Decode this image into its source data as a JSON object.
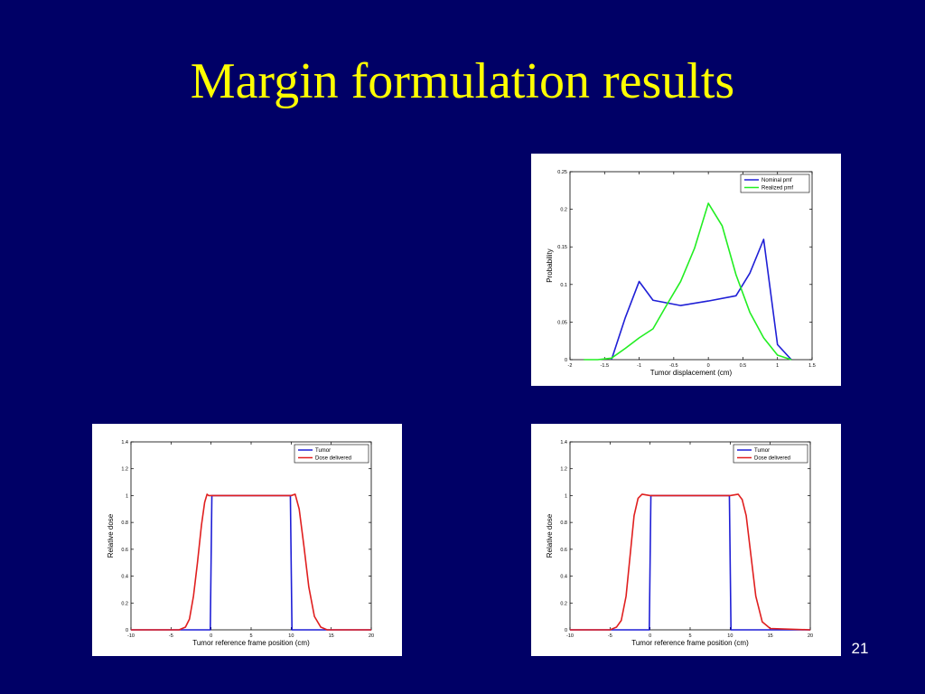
{
  "slide": {
    "title": "Margin formulation results",
    "page_number": "21"
  },
  "colors": {
    "background": "#000066",
    "title": "#FFFF00",
    "nominal": "#1f1fd6",
    "realized": "#22ee22",
    "tumor": "#1f1fd6",
    "dose": "#e01f1f"
  },
  "chart_data": [
    {
      "id": "pmf",
      "type": "line",
      "xlabel": "Tumor displacement (cm)",
      "ylabel": "Probability",
      "xlim": [
        -2,
        1.5
      ],
      "ylim": [
        0,
        0.25
      ],
      "xticks": [
        "-2",
        "-1.5",
        "-1",
        "-0.5",
        "0",
        "0.5",
        "1",
        "1.5"
      ],
      "xtick_values": [
        -2,
        -1.5,
        -1,
        -0.5,
        0,
        0.5,
        1,
        1.5
      ],
      "yticks": [
        "0",
        "0.05",
        "0.1",
        "0.15",
        "0.2",
        "0.25"
      ],
      "ytick_values": [
        0,
        0.05,
        0.1,
        0.15,
        0.2,
        0.25
      ],
      "legend": "top-right",
      "series": [
        {
          "name": "Nominal pmf",
          "color": "#1f1fd6",
          "x": [
            -1.4,
            -1.2,
            -1.0,
            -0.8,
            -0.4,
            0.0,
            0.4,
            0.6,
            0.8,
            1.0,
            1.2
          ],
          "y": [
            0.0,
            0.056,
            0.104,
            0.079,
            0.072,
            0.078,
            0.085,
            0.115,
            0.16,
            0.02,
            0.0
          ]
        },
        {
          "name": "Realized pmf",
          "color": "#22ee22",
          "x": [
            -1.8,
            -1.6,
            -1.4,
            -1.2,
            -1.0,
            -0.8,
            -0.6,
            -0.4,
            -0.2,
            0.0,
            0.2,
            0.4,
            0.6,
            0.8,
            1.0,
            1.2
          ],
          "y": [
            0.0,
            0.0,
            0.002,
            0.015,
            0.029,
            0.041,
            0.073,
            0.104,
            0.148,
            0.208,
            0.178,
            0.113,
            0.063,
            0.029,
            0.006,
            0.0
          ]
        }
      ]
    },
    {
      "id": "dose-left",
      "type": "line",
      "xlabel": "Tumor reference frame position (cm)",
      "ylabel": "Relative dose",
      "xlim": [
        -10,
        20
      ],
      "ylim": [
        0,
        1.4
      ],
      "xticks": [
        "-10",
        "-5",
        "0",
        "5",
        "10",
        "15",
        "20"
      ],
      "xtick_values": [
        -10,
        -5,
        0,
        5,
        10,
        15,
        20
      ],
      "yticks": [
        "0",
        "0.2",
        "0.4",
        "0.6",
        "0.8",
        "1",
        "1.2",
        "1.4"
      ],
      "ytick_values": [
        0,
        0.2,
        0.4,
        0.6,
        0.8,
        1,
        1.2,
        1.4
      ],
      "legend": "top-right",
      "series": [
        {
          "name": "Tumor",
          "color": "#1f1fd6",
          "x": [
            -10,
            -0.1,
            0.1,
            9.9,
            10.1,
            20
          ],
          "y": [
            0,
            0,
            1,
            1,
            0,
            0
          ]
        },
        {
          "name": "Dose delivered",
          "color": "#e01f1f",
          "x": [
            -10,
            -4.0,
            -3.2,
            -2.7,
            -2.2,
            -1.7,
            -1.2,
            -0.8,
            -0.5,
            -0.3,
            0.2,
            10.0,
            10.5,
            11.0,
            11.6,
            12.2,
            12.9,
            13.7,
            14.5,
            20
          ],
          "y": [
            0,
            0,
            0.02,
            0.08,
            0.25,
            0.5,
            0.78,
            0.95,
            1.01,
            1.0,
            1.0,
            1.0,
            1.01,
            0.9,
            0.62,
            0.32,
            0.1,
            0.02,
            0,
            0
          ]
        }
      ]
    },
    {
      "id": "dose-right",
      "type": "line",
      "xlabel": "Tumor reference frame position (cm)",
      "ylabel": "Relative dose",
      "xlim": [
        -10,
        20
      ],
      "ylim": [
        0,
        1.4
      ],
      "xticks": [
        "-10",
        "-5",
        "0",
        "5",
        "10",
        "15",
        "20"
      ],
      "xtick_values": [
        -10,
        -5,
        0,
        5,
        10,
        15,
        20
      ],
      "yticks": [
        "0",
        "0.2",
        "0.4",
        "0.6",
        "0.8",
        "1",
        "1.2",
        "1.4"
      ],
      "ytick_values": [
        0,
        0.2,
        0.4,
        0.6,
        0.8,
        1,
        1.2,
        1.4
      ],
      "legend": "top-right",
      "series": [
        {
          "name": "Tumor",
          "color": "#1f1fd6",
          "x": [
            -10,
            -0.1,
            0.1,
            9.9,
            10.1,
            20
          ],
          "y": [
            0,
            0,
            1,
            1,
            0,
            0
          ]
        },
        {
          "name": "Dose delivered",
          "color": "#e01f1f",
          "x": [
            -10,
            -5.0,
            -4.2,
            -3.6,
            -3.0,
            -2.5,
            -2.0,
            -1.5,
            -1.0,
            0.0,
            10.0,
            11.0,
            11.5,
            12.0,
            12.6,
            13.2,
            14.0,
            15.0,
            20
          ],
          "y": [
            0,
            0,
            0.02,
            0.07,
            0.25,
            0.55,
            0.85,
            0.98,
            1.01,
            1.0,
            1.0,
            1.01,
            0.97,
            0.85,
            0.55,
            0.25,
            0.06,
            0.01,
            0
          ]
        }
      ]
    }
  ]
}
